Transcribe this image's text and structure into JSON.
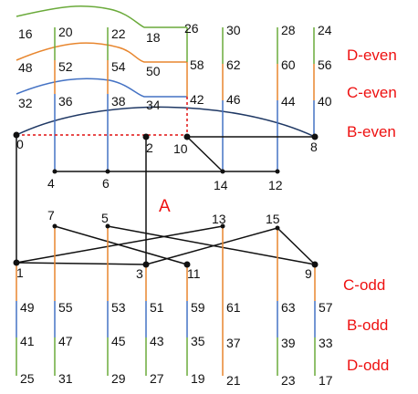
{
  "colors": {
    "green": "#6aaa3a",
    "orange": "#e8862e",
    "blue": "#4472c4",
    "navy": "#1f3864",
    "black": "#111111",
    "red": "#e01010"
  },
  "labels": {
    "d_even": "D-even",
    "c_even": "C-even",
    "b_even": "B-even",
    "a": "A",
    "c_odd": "C-odd",
    "b_odd": "B-odd",
    "d_odd": "D-odd"
  },
  "numbers": {
    "n16": "16",
    "n20": "20",
    "n22": "22",
    "n18": "18",
    "n26": "26",
    "n30": "30",
    "n28": "28",
    "n24": "24",
    "n48": "48",
    "n52": "52",
    "n54": "54",
    "n50": "50",
    "n58": "58",
    "n62": "62",
    "n60": "60",
    "n56": "56",
    "n32": "32",
    "n36": "36",
    "n38": "38",
    "n34": "34",
    "n42": "42",
    "n46": "46",
    "n44": "44",
    "n40": "40",
    "n0": "0",
    "n2": "2",
    "n10": "10",
    "n8": "8",
    "n4": "4",
    "n6": "6",
    "n14": "14",
    "n12": "12",
    "n7": "7",
    "n5": "5",
    "n13": "13",
    "n15": "15",
    "n1": "1",
    "n3": "3",
    "n11": "11",
    "n9": "9",
    "n49": "49",
    "n55": "55",
    "n53": "53",
    "n51": "51",
    "n59": "59",
    "n61": "61",
    "n63": "63",
    "n57": "57",
    "n41": "41",
    "n47": "47",
    "n45": "45",
    "n43": "43",
    "n35": "35",
    "n37": "37",
    "n39": "39",
    "n33": "33",
    "n25": "25",
    "n31": "31",
    "n29": "29",
    "n27": "27",
    "n19": "19",
    "n21": "21",
    "n23": "23",
    "n17": "17"
  }
}
